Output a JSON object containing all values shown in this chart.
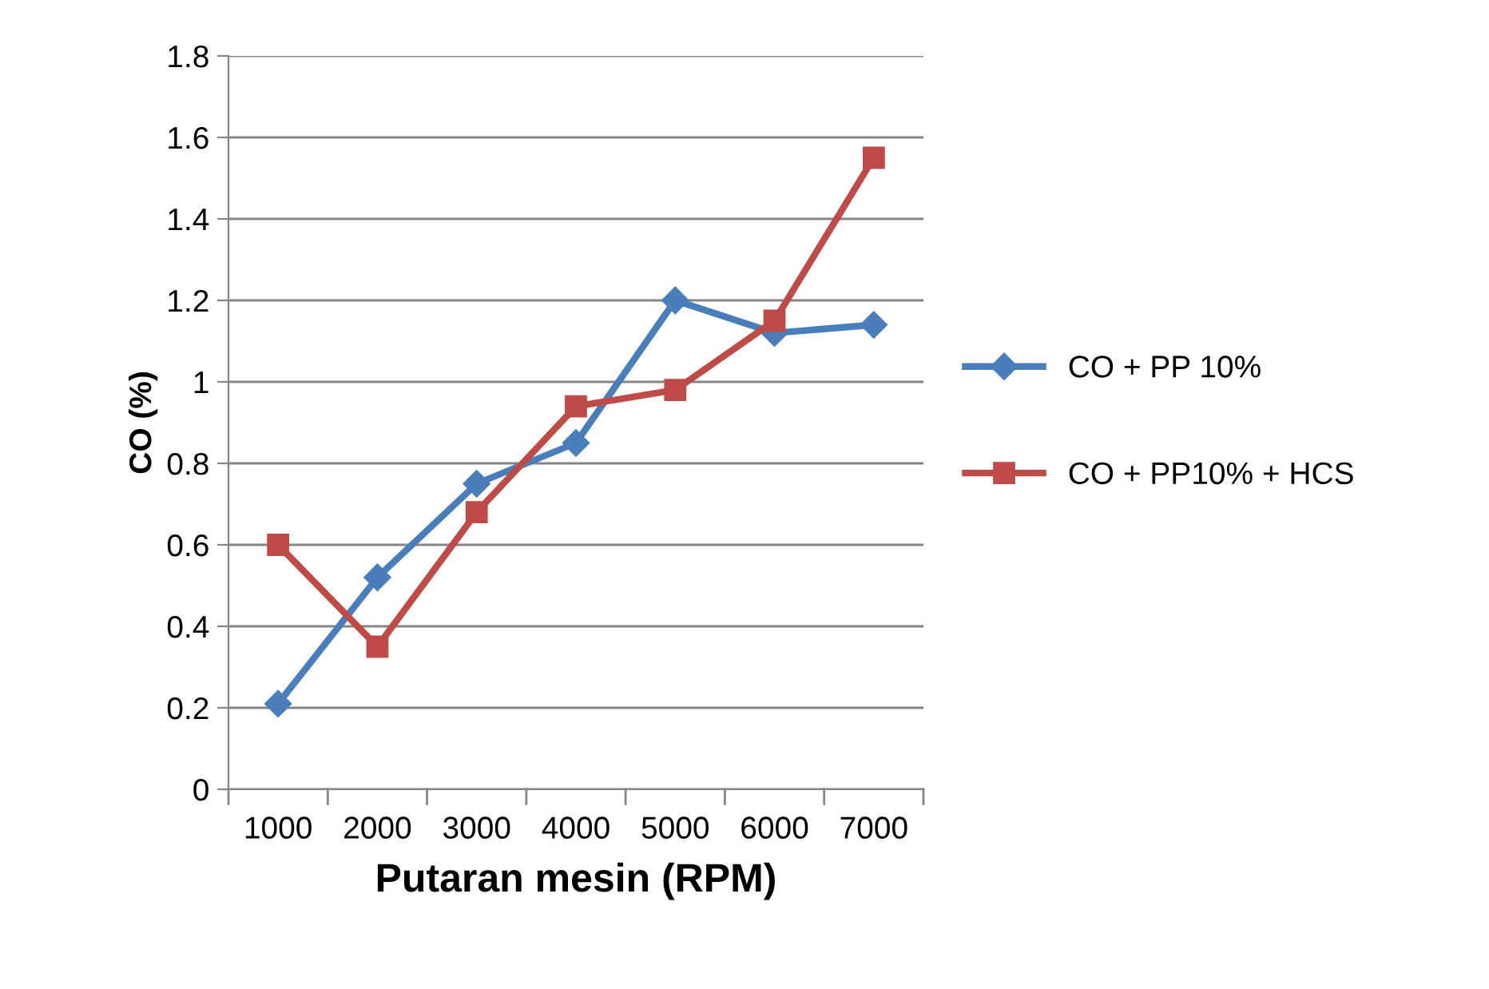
{
  "chart_data": {
    "type": "line",
    "xlabel": "Putaran mesin (RPM)",
    "ylabel": "CO (%)",
    "categories": [
      "1000",
      "2000",
      "3000",
      "4000",
      "5000",
      "6000",
      "7000"
    ],
    "series": [
      {
        "name": "CO + PP 10%",
        "color": "#4a7ebb",
        "marker": "diamond",
        "values": [
          0.21,
          0.52,
          0.75,
          0.85,
          1.2,
          1.12,
          1.14
        ]
      },
      {
        "name": "CO + PP10% + HCS",
        "color": "#be4b48",
        "marker": "square",
        "values": [
          0.6,
          0.35,
          0.68,
          0.94,
          0.98,
          1.15,
          1.55
        ]
      }
    ],
    "ylim": [
      0,
      1.8
    ],
    "yticks": [
      0,
      0.2,
      0.4,
      0.6,
      0.8,
      1,
      1.2,
      1.4,
      1.6,
      1.8
    ],
    "grid": "y",
    "legend": "right",
    "line_style": "solid"
  }
}
